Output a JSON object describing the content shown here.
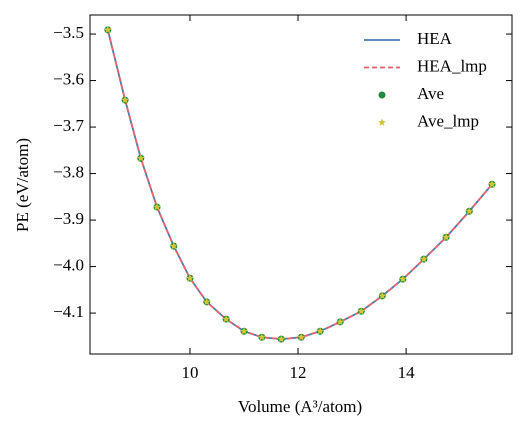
{
  "chart_data": {
    "type": "line",
    "xlabel": "Volume (A³/atom)",
    "ylabel": "PE (eV/atom)",
    "x": [
      8.48,
      8.8,
      9.09,
      9.39,
      9.7,
      10.0,
      10.31,
      10.67,
      11.0,
      11.33,
      11.69,
      12.06,
      12.41,
      12.78,
      13.17,
      13.56,
      13.94,
      14.33,
      14.74,
      15.17,
      15.59
    ],
    "series": [
      {
        "name": "HEA",
        "color": "#4a7ab0",
        "style": "solid",
        "values": [
          -3.491,
          -3.642,
          -3.767,
          -3.872,
          -3.956,
          -4.025,
          -4.076,
          -4.113,
          -4.139,
          -4.152,
          -4.156,
          -4.152,
          -4.139,
          -4.119,
          -4.096,
          -4.063,
          -4.027,
          -3.984,
          -3.937,
          -3.881,
          -3.823
        ]
      },
      {
        "name": "HEA_lmp",
        "color": "#e8636e",
        "style": "dashed",
        "values": [
          -3.491,
          -3.642,
          -3.767,
          -3.872,
          -3.956,
          -4.025,
          -4.076,
          -4.113,
          -4.139,
          -4.152,
          -4.156,
          -4.152,
          -4.139,
          -4.119,
          -4.096,
          -4.063,
          -4.027,
          -3.984,
          -3.937,
          -3.881,
          -3.823
        ]
      },
      {
        "name": "Ave",
        "color": "#1e8a3a",
        "style": "circle",
        "values": [
          -3.491,
          -3.642,
          -3.767,
          -3.872,
          -3.956,
          -4.025,
          -4.076,
          -4.113,
          -4.139,
          -4.152,
          -4.156,
          -4.152,
          -4.139,
          -4.119,
          -4.096,
          -4.063,
          -4.027,
          -3.984,
          -3.937,
          -3.881,
          -3.823
        ]
      },
      {
        "name": "Ave_lmp",
        "color": "#d4c43a",
        "style": "star",
        "values": [
          -3.491,
          -3.642,
          -3.767,
          -3.872,
          -3.956,
          -4.025,
          -4.076,
          -4.113,
          -4.139,
          -4.152,
          -4.156,
          -4.152,
          -4.139,
          -4.119,
          -4.096,
          -4.063,
          -4.027,
          -3.984,
          -3.937,
          -3.881,
          -3.823
        ]
      }
    ],
    "xlim": [
      8.15,
      15.96
    ],
    "ylim": [
      -4.188,
      -3.459
    ],
    "xticks": [
      10,
      12,
      14
    ],
    "yticks": [
      {
        "value": -3.5,
        "label": "−3.5"
      },
      {
        "value": -3.6,
        "label": "−3.6"
      },
      {
        "value": -3.7,
        "label": "−3.7"
      },
      {
        "value": -3.8,
        "label": "−3.8"
      },
      {
        "value": -3.9,
        "label": "−3.9"
      },
      {
        "value": -4.0,
        "label": "−4.0"
      },
      {
        "value": -4.1,
        "label": "−4.1"
      }
    ],
    "legend": "upper right"
  }
}
